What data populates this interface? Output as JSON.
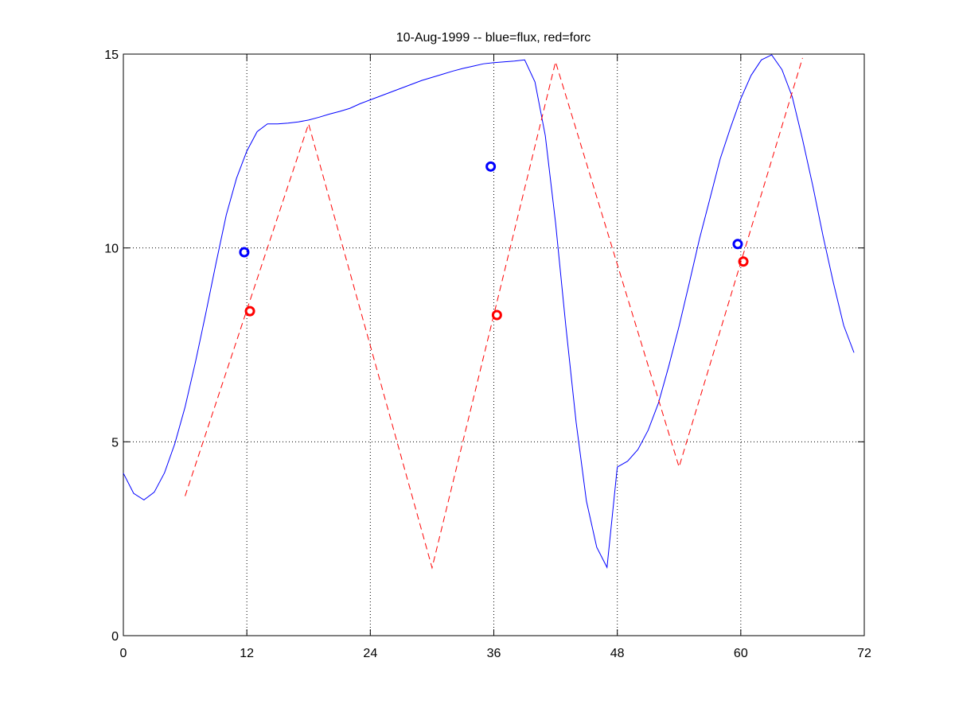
{
  "chart_data": {
    "type": "line",
    "title": "10-Aug-1999 -- blue=flux, red=forc",
    "xlim": [
      0,
      72
    ],
    "xticks": [
      0,
      12,
      24,
      36,
      48,
      60,
      72
    ],
    "ylim": [
      0,
      15
    ],
    "yticks": [
      0,
      5,
      10,
      15
    ],
    "grid": true,
    "series": [
      {
        "color": "#0000ff",
        "style": "solid",
        "x": [
          0,
          1,
          2,
          3,
          4,
          5,
          6,
          7,
          8,
          9,
          10,
          11,
          12,
          13,
          14,
          15,
          16,
          17,
          18,
          19,
          20,
          21,
          22,
          23,
          24,
          25,
          26,
          27,
          28,
          29,
          30,
          31,
          32,
          33,
          34,
          35,
          36,
          37,
          38,
          39,
          40,
          41,
          42,
          43,
          44,
          45,
          46,
          47,
          48,
          49,
          50,
          51,
          52,
          53,
          54,
          55,
          56,
          57,
          58,
          59,
          60,
          61,
          62,
          63,
          64,
          65,
          66,
          67,
          68,
          69,
          70,
          71
        ],
        "values": [
          4.19,
          3.67,
          3.5,
          3.7,
          4.2,
          4.95,
          5.9,
          7.05,
          8.3,
          9.6,
          10.85,
          11.8,
          12.5,
          13.0,
          13.2,
          13.2,
          13.22,
          13.25,
          13.3,
          13.37,
          13.45,
          13.52,
          13.6,
          13.72,
          13.82,
          13.92,
          14.02,
          14.12,
          14.22,
          14.32,
          14.4,
          14.48,
          14.56,
          14.63,
          14.69,
          14.75,
          14.78,
          14.8,
          14.82,
          14.85,
          14.28,
          12.9,
          10.65,
          7.98,
          5.5,
          3.47,
          2.28,
          1.76,
          4.35,
          4.5,
          4.8,
          5.3,
          6.0,
          6.95,
          7.98,
          9.1,
          10.25,
          11.27,
          12.3,
          13.1,
          13.85,
          14.45,
          14.85,
          14.98,
          14.6,
          13.9,
          12.8,
          11.6,
          10.3,
          9.1,
          8.0,
          7.3
        ]
      },
      {
        "color": "#ff0000",
        "style": "dashed",
        "x": [
          6,
          18,
          30,
          42,
          54,
          66
        ],
        "values": [
          3.6,
          13.2,
          1.75,
          14.8,
          4.35,
          14.9
        ]
      },
      {
        "color": "#0000ff",
        "style": "markers",
        "x": [
          11.75,
          35.7,
          59.7
        ],
        "values": [
          9.89,
          12.1,
          10.1
        ]
      },
      {
        "color": "#ff0000",
        "style": "markers",
        "x": [
          12.3,
          36.3,
          60.25
        ],
        "values": [
          8.37,
          8.27,
          9.65
        ]
      }
    ]
  }
}
